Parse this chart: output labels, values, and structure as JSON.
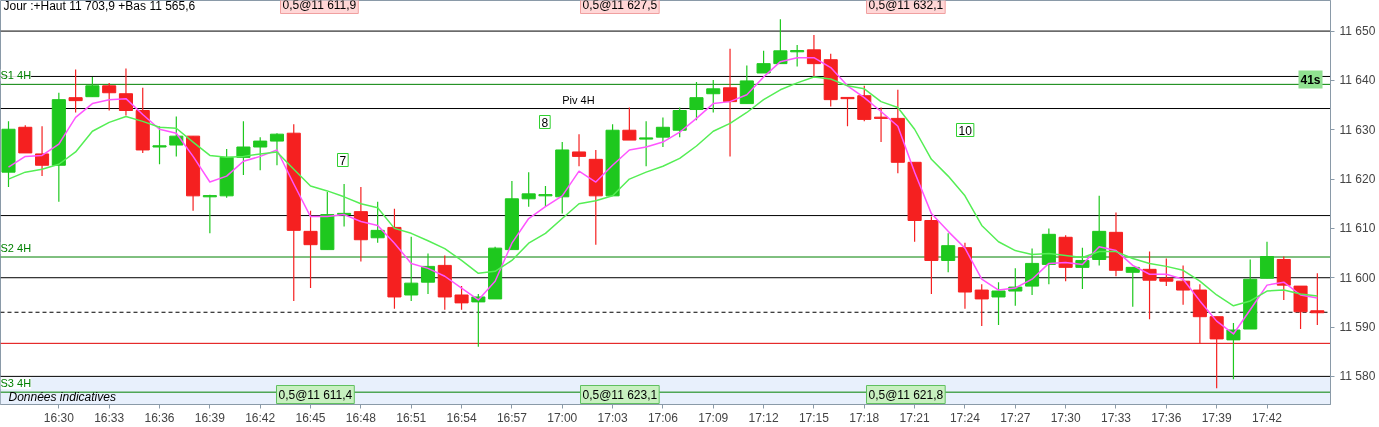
{
  "chart_data": {
    "type": "candlestick",
    "title": "Jour :+Haut 11 703,9 +Bas 11 565,6",
    "categories": [
      null,
      null,
      null,
      "16:30",
      null,
      null,
      "16:33",
      null,
      null,
      "16:36",
      null,
      null,
      "16:39",
      null,
      null,
      "16:42",
      null,
      null,
      "16:45",
      null,
      null,
      "16:48",
      null,
      null,
      "16:51",
      null,
      null,
      "16:54",
      null,
      null,
      "16:57",
      null,
      null,
      "17:00",
      null,
      null,
      "17:03",
      null,
      null,
      "17:06",
      null,
      null,
      "17:09",
      null,
      null,
      "17:12",
      null,
      null,
      "17:15",
      null,
      null,
      "17:18",
      null,
      null,
      "17:21",
      null,
      null,
      "17:24",
      null,
      null,
      "17:27",
      null,
      null,
      "17:30",
      null,
      null,
      "17:33",
      null,
      null,
      "17:36",
      null,
      null,
      "17:39",
      null,
      null,
      "17:42",
      null,
      null,
      null
    ],
    "ohlc": [
      [
        11621.4,
        11631.7,
        11618.4,
        11630.1
      ],
      [
        11630.5,
        11630.9,
        11625.3,
        11625.3
      ],
      [
        11625.1,
        11630.7,
        11620.6,
        11622.8
      ],
      [
        11622.8,
        11637.5,
        11615.4,
        11636.1
      ],
      [
        11636.5,
        11642.2,
        11633.5,
        11635.9
      ],
      [
        11636.7,
        11640.7,
        11636.7,
        11638.9
      ],
      [
        11638.9,
        11639.5,
        11633.9,
        11637.5
      ],
      [
        11637.3,
        11642.4,
        11632.9,
        11633.9
      ],
      [
        11633.9,
        11638.5,
        11625.3,
        11625.9
      ],
      [
        11626.5,
        11630.7,
        11623.0,
        11626.7
      ],
      [
        11626.9,
        11632.7,
        11624.6,
        11628.7
      ],
      [
        11628.7,
        11628.7,
        11613.6,
        11616.6
      ],
      [
        11616.4,
        11616.8,
        11609.0,
        11616.6
      ],
      [
        11616.6,
        11626.1,
        11616.2,
        11624.4
      ],
      [
        11624.4,
        11631.7,
        11620.8,
        11626.5
      ],
      [
        11626.5,
        11628.5,
        11621.8,
        11627.7
      ],
      [
        11627.7,
        11629.3,
        11622.8,
        11629.1
      ],
      [
        11629.3,
        11631.1,
        11595.3,
        11609.6
      ],
      [
        11609.4,
        11613.6,
        11597.9,
        11606.7
      ],
      [
        11605.7,
        11617.4,
        11605.7,
        11612.8
      ],
      [
        11612.8,
        11619.0,
        11610.4,
        11613.0
      ],
      [
        11613.4,
        11618.4,
        11603.3,
        11607.7
      ],
      [
        11608.1,
        11615.4,
        11607.1,
        11609.6
      ],
      [
        11610.2,
        11614.0,
        11593.7,
        11596.1
      ],
      [
        11596.5,
        11608.3,
        11595.3,
        11598.9
      ],
      [
        11599.1,
        11604.9,
        11596.7,
        11602.3
      ],
      [
        11602.5,
        11604.5,
        11593.5,
        11596.1
      ],
      [
        11596.5,
        11598.3,
        11593.5,
        11594.9
      ],
      [
        11595.1,
        11596.7,
        11586.0,
        11596.1
      ],
      [
        11595.7,
        11606.3,
        11595.7,
        11606.0
      ],
      [
        11605.7,
        11619.6,
        11605.7,
        11616.0
      ],
      [
        11616.0,
        11621.4,
        11614.4,
        11617.0
      ],
      [
        11616.6,
        11618.6,
        11614.4,
        11616.8
      ],
      [
        11616.4,
        11627.5,
        11613.0,
        11625.9
      ],
      [
        11625.5,
        11629.1,
        11622.6,
        11624.6
      ],
      [
        11624.0,
        11625.9,
        11606.7,
        11616.6
      ],
      [
        11616.6,
        11631.1,
        11616.6,
        11629.9
      ],
      [
        11629.9,
        11634.5,
        11627.9,
        11627.9
      ],
      [
        11628.1,
        11631.7,
        11622.6,
        11628.3
      ],
      [
        11628.5,
        11632.5,
        11626.5,
        11630.5
      ],
      [
        11629.9,
        11634.5,
        11628.5,
        11633.9
      ],
      [
        11634.1,
        11639.7,
        11631.9,
        11636.5
      ],
      [
        11637.3,
        11640.1,
        11633.5,
        11638.3
      ],
      [
        11638.5,
        11646.4,
        11624.6,
        11635.7
      ],
      [
        11635.3,
        11643.0,
        11635.3,
        11639.9
      ],
      [
        11641.5,
        11646.0,
        11641.5,
        11643.4
      ],
      [
        11643.4,
        11652.4,
        11643.4,
        11646.0
      ],
      [
        11645.8,
        11647.2,
        11642.8,
        11646.0
      ],
      [
        11646.2,
        11649.2,
        11640.9,
        11643.4
      ],
      [
        11644.2,
        11645.4,
        11634.7,
        11636.1
      ],
      [
        11636.5,
        11636.5,
        11630.7,
        11636.3
      ],
      [
        11636.9,
        11638.9,
        11631.7,
        11632.1
      ],
      [
        11632.5,
        11634.5,
        11627.5,
        11632.3
      ],
      [
        11632.3,
        11638.1,
        11621.2,
        11623.4
      ],
      [
        11623.4,
        11623.4,
        11607.3,
        11611.6
      ],
      [
        11611.6,
        11612.4,
        11596.7,
        11603.5
      ],
      [
        11603.5,
        11609.0,
        11601.1,
        11606.5
      ],
      [
        11606.1,
        11607.1,
        11593.7,
        11597.1
      ],
      [
        11597.5,
        11598.7,
        11590.2,
        11595.7
      ],
      [
        11596.1,
        11599.1,
        11590.4,
        11597.3
      ],
      [
        11597.3,
        11601.9,
        11594.3,
        11598.1
      ],
      [
        11598.3,
        11605.9,
        11596.5,
        11602.9
      ],
      [
        11602.7,
        11610.0,
        11598.7,
        11608.8
      ],
      [
        11608.2,
        11608.6,
        11599.3,
        11602.1
      ],
      [
        11602.1,
        11606.1,
        11597.7,
        11603.5
      ],
      [
        11603.7,
        11616.6,
        11602.5,
        11609.4
      ],
      [
        11609.2,
        11613.2,
        11600.3,
        11601.5
      ],
      [
        11601.1,
        11602.1,
        11594.1,
        11602.1
      ],
      [
        11601.7,
        11605.3,
        11591.6,
        11599.5
      ],
      [
        11599.9,
        11603.9,
        11598.3,
        11599.3
      ],
      [
        11599.3,
        11602.5,
        11594.5,
        11597.5
      ],
      [
        11597.5,
        11598.7,
        11586.6,
        11592.1
      ],
      [
        11592.1,
        11592.1,
        11577.6,
        11587.6
      ],
      [
        11587.4,
        11590.8,
        11579.4,
        11589.4
      ],
      [
        11589.6,
        11603.7,
        11589.6,
        11599.7
      ],
      [
        11599.9,
        11607.3,
        11599.9,
        11604.3
      ],
      [
        11603.7,
        11604.3,
        11595.5,
        11598.5
      ],
      [
        11598.3,
        11598.3,
        11589.6,
        11593.1
      ],
      [
        11593.3,
        11600.9,
        11590.4,
        11592.9
      ]
    ],
    "colors": [
      "#1ec81e",
      "#f52020",
      "#f52020",
      "#1ec81e",
      "#f52020",
      "#1ec81e",
      "#f52020",
      "#f52020",
      "#f52020",
      "#1ec81e",
      "#1ec81e",
      "#f52020",
      "#1ec81e",
      "#1ec81e",
      "#1ec81e",
      "#1ec81e",
      "#1ec81e",
      "#f52020",
      "#f52020",
      "#1ec81e",
      "#1ec81e",
      "#f52020",
      "#1ec81e",
      "#f52020",
      "#1ec81e",
      "#1ec81e",
      "#f52020",
      "#f52020",
      "#1ec81e",
      "#1ec81e",
      "#1ec81e",
      "#1ec81e",
      "#1ec81e",
      "#1ec81e",
      "#f52020",
      "#f52020",
      "#1ec81e",
      "#f52020",
      "#1ec81e",
      "#1ec81e",
      "#1ec81e",
      "#1ec81e",
      "#1ec81e",
      "#f52020",
      "#1ec81e",
      "#1ec81e",
      "#1ec81e",
      "#1ec81e",
      "#f52020",
      "#f52020",
      "#f52020",
      "#f52020",
      "#f52020",
      "#f52020",
      "#f52020",
      "#f52020",
      "#1ec81e",
      "#f52020",
      "#f52020",
      "#1ec81e",
      "#1ec81e",
      "#1ec81e",
      "#1ec81e",
      "#f52020",
      "#1ec81e",
      "#1ec81e",
      "#f52020",
      "#1ec81e",
      "#f52020",
      "#f52020",
      "#f52020",
      "#f52020",
      "#f52020",
      "#1ec81e",
      "#1ec81e",
      "#1ec81e",
      "#f52020",
      "#f52020",
      "#f52020"
    ],
    "series": [
      {
        "type": "line",
        "color": "#ff55ff",
        "values": [
          11622.4,
          11624.6,
          11624.8,
          11627.1,
          11632.5,
          11635.3,
          11636.1,
          11636.3,
          11633.1,
          11630.1,
          11629.3,
          11624.6,
          11619.4,
          11620.6,
          11623.6,
          11624.6,
          11625.9,
          11619.0,
          11612.4,
          11612.4,
          11612.8,
          11611.4,
          11610.6,
          11607.0,
          11602.9,
          11601.9,
          11600.3,
          11597.9,
          11595.5,
          11599.3,
          11607.0,
          11612.0,
          11614.4,
          11616.6,
          11621.6,
          11619.4,
          11622.8,
          11625.9,
          11626.5,
          11627.5,
          11629.5,
          11632.3,
          11635.3,
          11635.7,
          11637.1,
          11640.7,
          11643.8,
          11644.6,
          11644.6,
          11642.6,
          11638.9,
          11636.5,
          11633.7,
          11630.7,
          11621.4,
          11613.0,
          11609.4,
          11606.0,
          11599.7,
          11597.5,
          11597.9,
          11599.7,
          11602.9,
          11603.1,
          11602.7,
          11606.3,
          11605.5,
          11602.5,
          11600.7,
          11600.7,
          11599.7,
          11595.3,
          11591.2,
          11588.6,
          11593.5,
          11598.5,
          11599.1,
          11596.5,
          11595.9
        ]
      },
      {
        "type": "line",
        "color": "#55ee55",
        "values": [
          11620.0,
          11621.4,
          11622.0,
          11623.0,
          11625.5,
          11629.7,
          11631.5,
          11632.7,
          11631.7,
          11630.5,
          11630.3,
          11627.5,
          11624.8,
          11624.4,
          11624.6,
          11625.1,
          11625.5,
          11622.0,
          11618.6,
          11617.6,
          11616.4,
          11615.0,
          11614.2,
          11610.0,
          11609.0,
          11607.5,
          11605.9,
          11603.5,
          11600.9,
          11601.3,
          11603.5,
          11607.0,
          11609.0,
          11612.0,
          11615.0,
          11615.6,
          11616.6,
          11620.0,
          11621.4,
          11622.6,
          11624.2,
          11626.7,
          11629.7,
          11631.3,
          11633.5,
          11636.1,
          11638.1,
          11639.5,
          11640.7,
          11640.3,
          11638.9,
          11638.3,
          11635.7,
          11634.5,
          11630.1,
          11624.0,
          11620.6,
          11616.6,
          11610.6,
          11607.3,
          11605.5,
          11604.7,
          11604.9,
          11604.5,
          11604.1,
          11605.3,
          11605.3,
          11603.9,
          11602.9,
          11602.3,
          11601.5,
          11599.3,
          11596.5,
          11594.3,
          11595.3,
          11597.3,
          11597.5,
          11596.7,
          11596.3
        ]
      }
    ],
    "ylim": [
      11574.3,
      11656.2
    ],
    "yticks": [
      {
        "value": 11580,
        "label": "11 580"
      },
      {
        "value": 11590,
        "label": "11 590"
      },
      {
        "value": 11600,
        "label": "11 600"
      },
      {
        "value": 11610,
        "label": "11 610"
      },
      {
        "value": 11620,
        "label": "11 620"
      },
      {
        "value": 11630,
        "label": "11 630"
      },
      {
        "value": 11640,
        "label": "11 640"
      },
      {
        "value": 11650,
        "label": "11 650"
      }
    ],
    "ref_lines": [
      {
        "axis": "y",
        "value": 11650,
        "color": "#000000"
      },
      {
        "axis": "y",
        "value": 11640.8,
        "color": "#000000"
      },
      {
        "axis": "y",
        "value": 11639.2,
        "label": "S1 4H",
        "color": "#008000"
      },
      {
        "axis": "y",
        "value": 11634.3,
        "label": "Piv 4H",
        "color": "#000000"
      },
      {
        "axis": "y",
        "value": 11612.6,
        "color": "#000000"
      },
      {
        "axis": "y",
        "value": 11604.2,
        "label": "S2 4H",
        "color": "#008000"
      },
      {
        "axis": "y",
        "value": 11600,
        "color": "#000000"
      },
      {
        "axis": "y",
        "value": 11593.0,
        "color": "#000000",
        "line_style": "dashed"
      },
      {
        "axis": "y",
        "value": 11586.7,
        "color": "#e00000"
      },
      {
        "axis": "y",
        "value": 11580,
        "color": "#000000"
      },
      {
        "axis": "y",
        "value": 11576.8,
        "label": "S3 4H",
        "color": "#008000"
      }
    ],
    "bands": [
      {
        "axis": "y",
        "from": 11574.3,
        "to": 11579.8,
        "color": "#e8f0fc"
      }
    ],
    "annotations": [
      "0,5@11 611,9",
      "0,5@11 627,5",
      "0,5@11 632,1",
      "0,5@11 611,4",
      "0,5@11 623,1",
      "0,5@11 621,8",
      "7",
      "8",
      "10",
      "Données indicatives",
      "41s"
    ],
    "grid": false
  }
}
